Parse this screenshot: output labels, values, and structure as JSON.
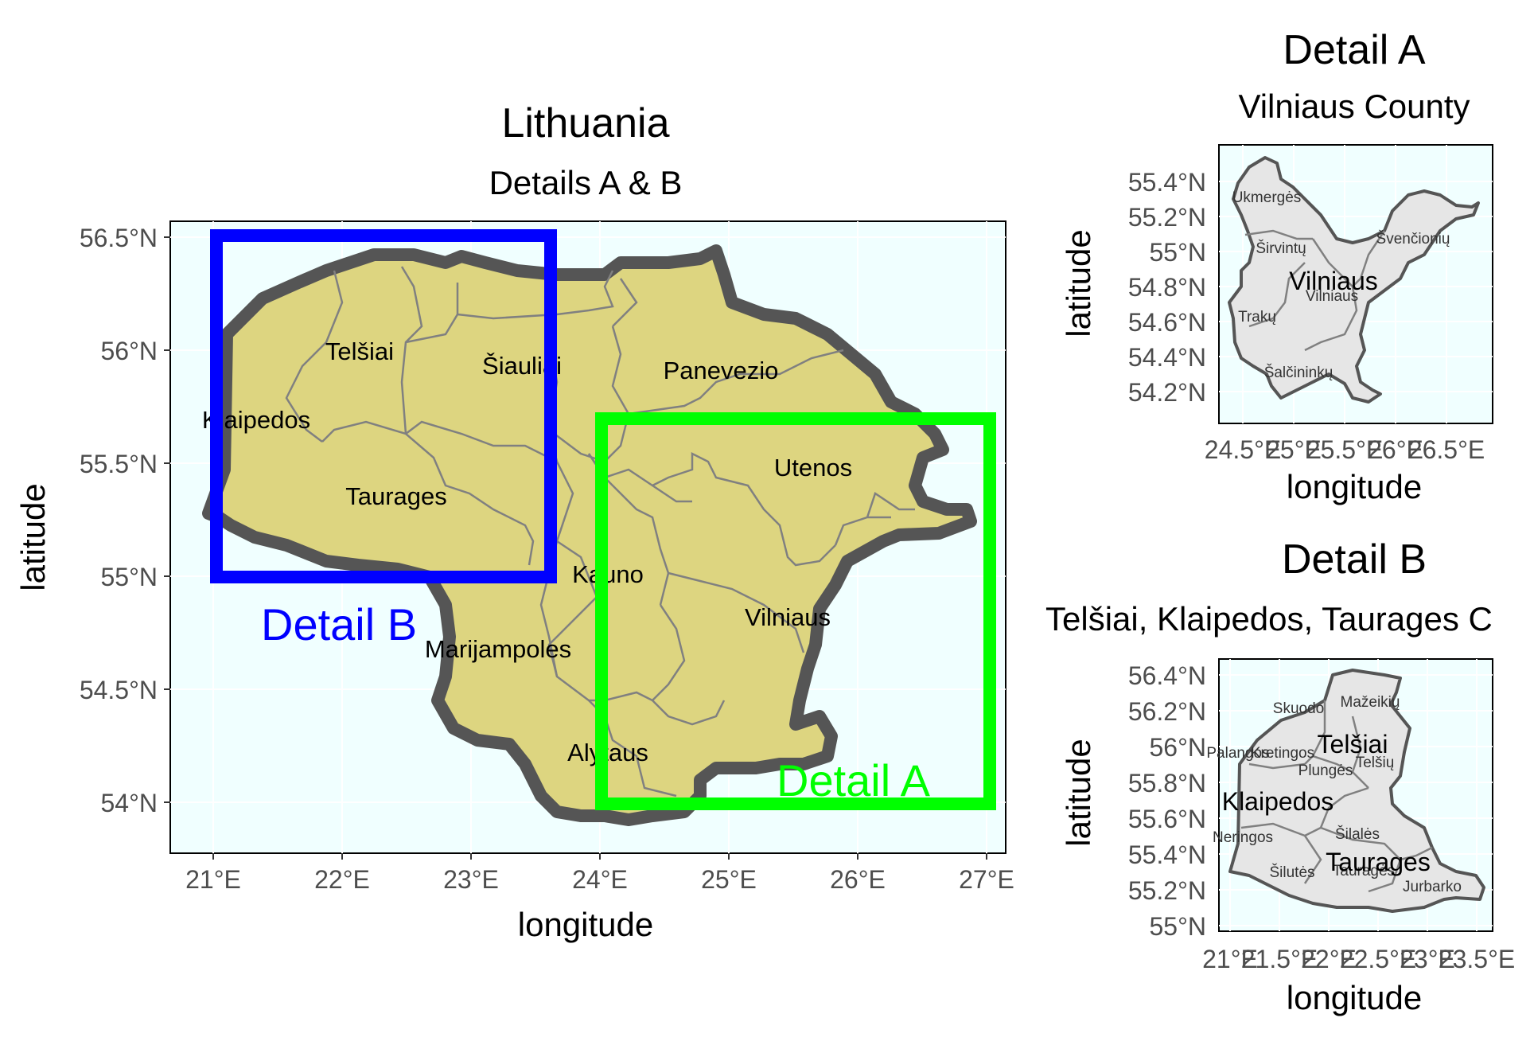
{
  "main_map": {
    "title": "Lithuania",
    "subtitle": "Details A & B",
    "xlabel": "longitude",
    "ylabel": "latitude",
    "x_ticks": [
      "21°E",
      "22°E",
      "23°E",
      "24°E",
      "25°E",
      "26°E",
      "27°E"
    ],
    "y_ticks": [
      "56.5°N",
      "56°N",
      "55.5°N",
      "55°N",
      "54.5°N",
      "54°N"
    ],
    "regions": [
      {
        "name": "Telšiai"
      },
      {
        "name": "Šiauliai"
      },
      {
        "name": "Panevezio"
      },
      {
        "name": "Klaipedos"
      },
      {
        "name": "Utenos"
      },
      {
        "name": "Taurages"
      },
      {
        "name": "Kauno"
      },
      {
        "name": "Vilniaus"
      },
      {
        "name": "Marijampoles"
      },
      {
        "name": "Alytaus"
      }
    ],
    "detail_boxes": {
      "a": {
        "label": "Detail A",
        "color": "#00ff00"
      },
      "b": {
        "label": "Detail B",
        "color": "#0000ff"
      }
    }
  },
  "detail_a": {
    "title": "Detail A",
    "subtitle": "Vilniaus County",
    "xlabel": "longitude",
    "ylabel": "latitude",
    "x_ticks": [
      "24.5°E",
      "25°E",
      "25.5°E",
      "26°E",
      "26.5°E"
    ],
    "y_ticks": [
      "55.4°N",
      "55.2°N",
      "55°N",
      "54.8°N",
      "54.6°N",
      "54.4°N",
      "54.2°N"
    ],
    "county_label": "Vilniaus",
    "districts": [
      "Ukmergės",
      "Širvintų",
      "Švenčionių",
      "Vilniaus",
      "Trakų",
      "Šalčininkų"
    ]
  },
  "detail_b": {
    "title": "Detail B",
    "subtitle": "Telšiai, Klaipedos, Taurages C",
    "xlabel": "longitude",
    "ylabel": "latitude",
    "x_ticks": [
      "21°E",
      "21.5°E",
      "22°E",
      "22.5°E",
      "23°E",
      "23.5°E"
    ],
    "y_ticks": [
      "56.4°N",
      "56.2°N",
      "56°N",
      "55.8°N",
      "55.6°N",
      "55.4°N",
      "55.2°N",
      "55°N"
    ],
    "county_labels": [
      "Telšiai",
      "Klaipedos",
      "Taurages"
    ],
    "districts": [
      "Skuodo",
      "Mažeikių",
      "Palangos",
      "Kretingos",
      "Plungės",
      "Telšių",
      "Neringos",
      "Šilalės",
      "Šilutės",
      "Tauragės",
      "Jurbarko"
    ]
  }
}
